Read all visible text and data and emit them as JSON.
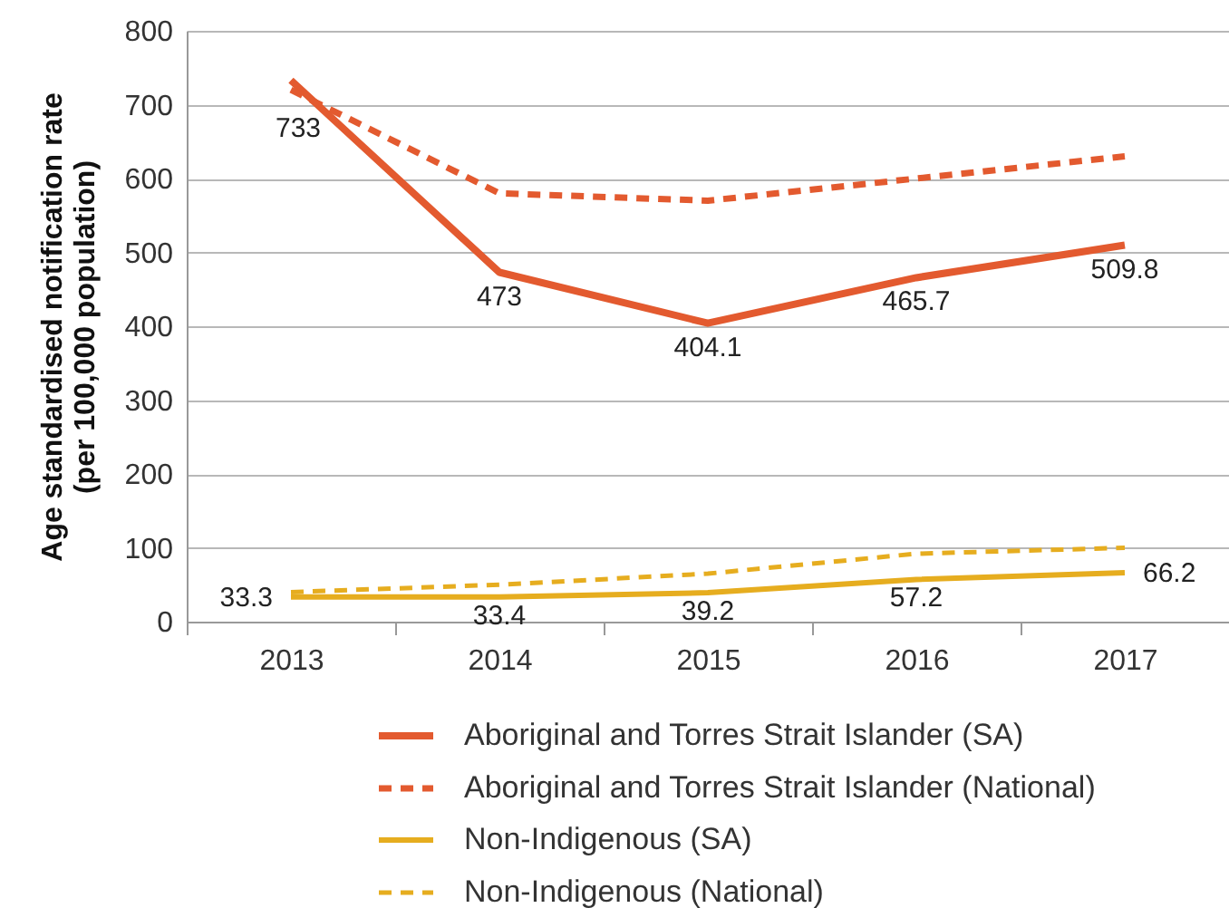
{
  "chart_data": {
    "type": "line",
    "ylabel": "Age standardised notification rate (per 100,000 population)",
    "categories": [
      "2013",
      "2014",
      "2015",
      "2016",
      "2017"
    ],
    "ylim": [
      0,
      800
    ],
    "yticks": [
      0,
      100,
      200,
      300,
      400,
      500,
      600,
      700,
      800
    ],
    "grid": "y",
    "legend": "bottom",
    "series": [
      {
        "name": "Aboriginal and Torres Strait Islander (SA)",
        "color": "#e35a2f",
        "line_style": "solid",
        "values": [
          733,
          473,
          404.1,
          465.7,
          509.8
        ],
        "value_labels": [
          "733",
          "473",
          "404.1",
          "465.7",
          "509.8"
        ]
      },
      {
        "name": "Aboriginal and Torres Strait Islander (National)",
        "color": "#e35a2f",
        "line_style": "dashed",
        "values": [
          720,
          580,
          570,
          600,
          630
        ]
      },
      {
        "name": "Non-Indigenous (SA)",
        "color": "#e6ad1f",
        "line_style": "solid",
        "values": [
          33.3,
          33.4,
          39.2,
          57.2,
          66.2
        ],
        "value_labels": [
          "33.3",
          "33.4",
          "39.2",
          "57.2",
          "66.2"
        ]
      },
      {
        "name": "Non-Indigenous (National)",
        "color": "#e6ad1f",
        "line_style": "dashed",
        "values": [
          40,
          50,
          65,
          92,
          100
        ]
      }
    ]
  }
}
